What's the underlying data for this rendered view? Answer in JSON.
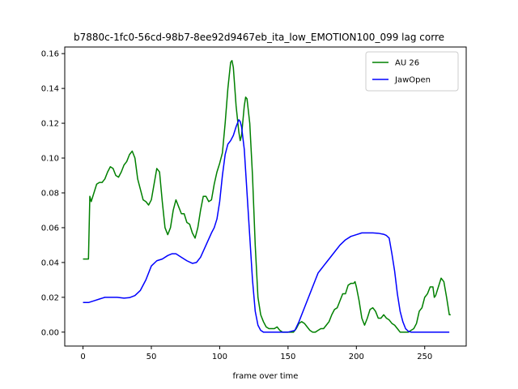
{
  "chart_data": {
    "type": "line",
    "title": "b7880c-1fc0-56cd-98b7-8ee92d9467eb_ita_low_EMOTION100_099  lag corre",
    "xlabel": "frame over time",
    "ylabel": "",
    "xlim": [
      -13.35,
      280.35
    ],
    "ylim": [
      -0.008,
      0.1638
    ],
    "xticks": [
      0,
      50,
      100,
      150,
      200,
      250
    ],
    "xtick_labels": [
      "0",
      "50",
      "100",
      "150",
      "200",
      "250"
    ],
    "yticks": [
      0.0,
      0.02,
      0.04,
      0.06,
      0.08,
      0.1,
      0.12,
      0.14,
      0.16
    ],
    "ytick_labels": [
      "0.00",
      "0.02",
      "0.04",
      "0.06",
      "0.08",
      "0.10",
      "0.12",
      "0.14",
      "0.16"
    ],
    "grid": false,
    "legend_position": "top-right",
    "series": [
      {
        "name": "AU 26",
        "color": "#008000",
        "points": [
          [
            0,
            0.042
          ],
          [
            4,
            0.042
          ],
          [
            5,
            0.078
          ],
          [
            6,
            0.075
          ],
          [
            8,
            0.08
          ],
          [
            10,
            0.085
          ],
          [
            12,
            0.086
          ],
          [
            14,
            0.086
          ],
          [
            16,
            0.088
          ],
          [
            18,
            0.092
          ],
          [
            20,
            0.095
          ],
          [
            22,
            0.094
          ],
          [
            24,
            0.09
          ],
          [
            26,
            0.089
          ],
          [
            28,
            0.092
          ],
          [
            30,
            0.096
          ],
          [
            32,
            0.098
          ],
          [
            34,
            0.102
          ],
          [
            36,
            0.104
          ],
          [
            38,
            0.1
          ],
          [
            40,
            0.088
          ],
          [
            42,
            0.082
          ],
          [
            44,
            0.076
          ],
          [
            46,
            0.075
          ],
          [
            48,
            0.073
          ],
          [
            50,
            0.076
          ],
          [
            52,
            0.085
          ],
          [
            54,
            0.094
          ],
          [
            56,
            0.092
          ],
          [
            58,
            0.075
          ],
          [
            60,
            0.06
          ],
          [
            62,
            0.056
          ],
          [
            64,
            0.06
          ],
          [
            66,
            0.07
          ],
          [
            68,
            0.076
          ],
          [
            70,
            0.072
          ],
          [
            72,
            0.068
          ],
          [
            74,
            0.068
          ],
          [
            76,
            0.063
          ],
          [
            78,
            0.062
          ],
          [
            80,
            0.057
          ],
          [
            82,
            0.054
          ],
          [
            84,
            0.06
          ],
          [
            86,
            0.07
          ],
          [
            88,
            0.078
          ],
          [
            90,
            0.078
          ],
          [
            92,
            0.075
          ],
          [
            94,
            0.076
          ],
          [
            96,
            0.085
          ],
          [
            98,
            0.092
          ],
          [
            100,
            0.097
          ],
          [
            102,
            0.103
          ],
          [
            104,
            0.12
          ],
          [
            106,
            0.14
          ],
          [
            108,
            0.155
          ],
          [
            109,
            0.156
          ],
          [
            110,
            0.152
          ],
          [
            112,
            0.13
          ],
          [
            114,
            0.115
          ],
          [
            115,
            0.11
          ],
          [
            116,
            0.113
          ],
          [
            118,
            0.13
          ],
          [
            119,
            0.135
          ],
          [
            120,
            0.134
          ],
          [
            122,
            0.12
          ],
          [
            124,
            0.09
          ],
          [
            126,
            0.05
          ],
          [
            128,
            0.02
          ],
          [
            130,
            0.01
          ],
          [
            132,
            0.006
          ],
          [
            134,
            0.003
          ],
          [
            136,
            0.002
          ],
          [
            138,
            0.002
          ],
          [
            140,
            0.002
          ],
          [
            142,
            0.003
          ],
          [
            144,
            0.001
          ],
          [
            146,
            0
          ],
          [
            150,
            0
          ],
          [
            154,
            0
          ],
          [
            156,
            0.002
          ],
          [
            158,
            0.005
          ],
          [
            160,
            0.006
          ],
          [
            162,
            0.005
          ],
          [
            164,
            0.003
          ],
          [
            166,
            0.001
          ],
          [
            168,
            0
          ],
          [
            170,
            0
          ],
          [
            172,
            0.001
          ],
          [
            174,
            0.002
          ],
          [
            176,
            0.002
          ],
          [
            178,
            0.004
          ],
          [
            180,
            0.006
          ],
          [
            182,
            0.01
          ],
          [
            184,
            0.013
          ],
          [
            186,
            0.014
          ],
          [
            188,
            0.018
          ],
          [
            190,
            0.022
          ],
          [
            192,
            0.022
          ],
          [
            194,
            0.027
          ],
          [
            196,
            0.028
          ],
          [
            198,
            0.028
          ],
          [
            199,
            0.029
          ],
          [
            200,
            0.026
          ],
          [
            202,
            0.018
          ],
          [
            204,
            0.008
          ],
          [
            206,
            0.004
          ],
          [
            208,
            0.008
          ],
          [
            210,
            0.013
          ],
          [
            212,
            0.014
          ],
          [
            214,
            0.012
          ],
          [
            216,
            0.008
          ],
          [
            218,
            0.008
          ],
          [
            220,
            0.01
          ],
          [
            222,
            0.008
          ],
          [
            224,
            0.007
          ],
          [
            226,
            0.005
          ],
          [
            228,
            0.004
          ],
          [
            230,
            0.002
          ],
          [
            232,
            0
          ],
          [
            234,
            0
          ],
          [
            236,
            0
          ],
          [
            238,
            0
          ],
          [
            240,
            0.001
          ],
          [
            242,
            0.002
          ],
          [
            244,
            0.005
          ],
          [
            246,
            0.012
          ],
          [
            248,
            0.014
          ],
          [
            250,
            0.02
          ],
          [
            252,
            0.022
          ],
          [
            254,
            0.026
          ],
          [
            256,
            0.026
          ],
          [
            257,
            0.02
          ],
          [
            258,
            0.021
          ],
          [
            260,
            0.026
          ],
          [
            262,
            0.031
          ],
          [
            264,
            0.029
          ],
          [
            266,
            0.02
          ],
          [
            268,
            0.01
          ],
          [
            269,
            0.01
          ]
        ]
      },
      {
        "name": "JawOpen",
        "color": "#0000ff",
        "points": [
          [
            0,
            0.017
          ],
          [
            4,
            0.017
          ],
          [
            8,
            0.018
          ],
          [
            12,
            0.019
          ],
          [
            16,
            0.02
          ],
          [
            20,
            0.02
          ],
          [
            25,
            0.02
          ],
          [
            30,
            0.0195
          ],
          [
            34,
            0.0198
          ],
          [
            38,
            0.021
          ],
          [
            42,
            0.024
          ],
          [
            46,
            0.03
          ],
          [
            50,
            0.038
          ],
          [
            54,
            0.041
          ],
          [
            58,
            0.042
          ],
          [
            62,
            0.044
          ],
          [
            65,
            0.045
          ],
          [
            68,
            0.045
          ],
          [
            72,
            0.043
          ],
          [
            76,
            0.041
          ],
          [
            80,
            0.0395
          ],
          [
            83,
            0.04
          ],
          [
            86,
            0.043
          ],
          [
            90,
            0.05
          ],
          [
            94,
            0.057
          ],
          [
            96,
            0.06
          ],
          [
            98,
            0.065
          ],
          [
            100,
            0.075
          ],
          [
            102,
            0.09
          ],
          [
            104,
            0.102
          ],
          [
            106,
            0.108
          ],
          [
            108,
            0.11
          ],
          [
            110,
            0.113
          ],
          [
            112,
            0.118
          ],
          [
            114,
            0.122
          ],
          [
            115,
            0.121
          ],
          [
            116,
            0.118
          ],
          [
            118,
            0.105
          ],
          [
            120,
            0.08
          ],
          [
            122,
            0.055
          ],
          [
            124,
            0.03
          ],
          [
            126,
            0.012
          ],
          [
            128,
            0.004
          ],
          [
            130,
            0.001
          ],
          [
            132,
            0
          ],
          [
            136,
            0
          ],
          [
            140,
            0
          ],
          [
            150,
            0
          ],
          [
            155,
            0.001
          ],
          [
            158,
            0.006
          ],
          [
            162,
            0.014
          ],
          [
            166,
            0.022
          ],
          [
            170,
            0.03
          ],
          [
            172,
            0.034
          ],
          [
            174,
            0.036
          ],
          [
            176,
            0.038
          ],
          [
            178,
            0.04
          ],
          [
            180,
            0.042
          ],
          [
            184,
            0.046
          ],
          [
            188,
            0.05
          ],
          [
            192,
            0.053
          ],
          [
            196,
            0.055
          ],
          [
            200,
            0.056
          ],
          [
            204,
            0.057
          ],
          [
            208,
            0.057
          ],
          [
            212,
            0.057
          ],
          [
            216,
            0.0568
          ],
          [
            220,
            0.0562
          ],
          [
            222,
            0.0555
          ],
          [
            224,
            0.054
          ],
          [
            226,
            0.045
          ],
          [
            228,
            0.035
          ],
          [
            230,
            0.022
          ],
          [
            232,
            0.012
          ],
          [
            234,
            0.006
          ],
          [
            236,
            0.002
          ],
          [
            238,
            0.0005
          ],
          [
            240,
            0
          ],
          [
            245,
            0
          ],
          [
            250,
            0
          ],
          [
            255,
            0
          ],
          [
            260,
            0
          ],
          [
            265,
            0
          ],
          [
            268,
            0
          ]
        ]
      }
    ]
  }
}
